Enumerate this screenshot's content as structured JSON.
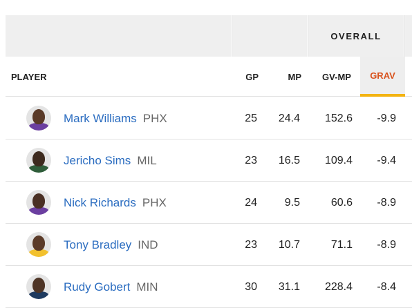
{
  "header": {
    "overall_label": "OVERALL",
    "columns": {
      "player": "PLAYER",
      "gp": "GP",
      "mp": "MP",
      "gv_mp": "GV-MP",
      "grav": "GRAV"
    },
    "sorted_column_color": "#d9531e",
    "sort_indicator_color": "#f3b311"
  },
  "link_color": "#2a6cc0",
  "rows": [
    {
      "name": "Mark Williams",
      "team": "PHX",
      "gp": "25",
      "mp": "24.4",
      "gv_mp": "152.6",
      "grav": "-9.9",
      "avatar": "player-headshot-icon"
    },
    {
      "name": "Jericho Sims",
      "team": "MIL",
      "gp": "23",
      "mp": "16.5",
      "gv_mp": "109.4",
      "grav": "-9.4",
      "avatar": "player-headshot-icon"
    },
    {
      "name": "Nick Richards",
      "team": "PHX",
      "gp": "24",
      "mp": "9.5",
      "gv_mp": "60.6",
      "grav": "-8.9",
      "avatar": "player-headshot-icon"
    },
    {
      "name": "Tony Bradley",
      "team": "IND",
      "gp": "23",
      "mp": "10.7",
      "gv_mp": "71.1",
      "grav": "-8.9",
      "avatar": "player-headshot-icon"
    },
    {
      "name": "Rudy Gobert",
      "team": "MIN",
      "gp": "30",
      "mp": "31.1",
      "gv_mp": "228.4",
      "grav": "-8.4",
      "avatar": "player-headshot-icon"
    }
  ]
}
